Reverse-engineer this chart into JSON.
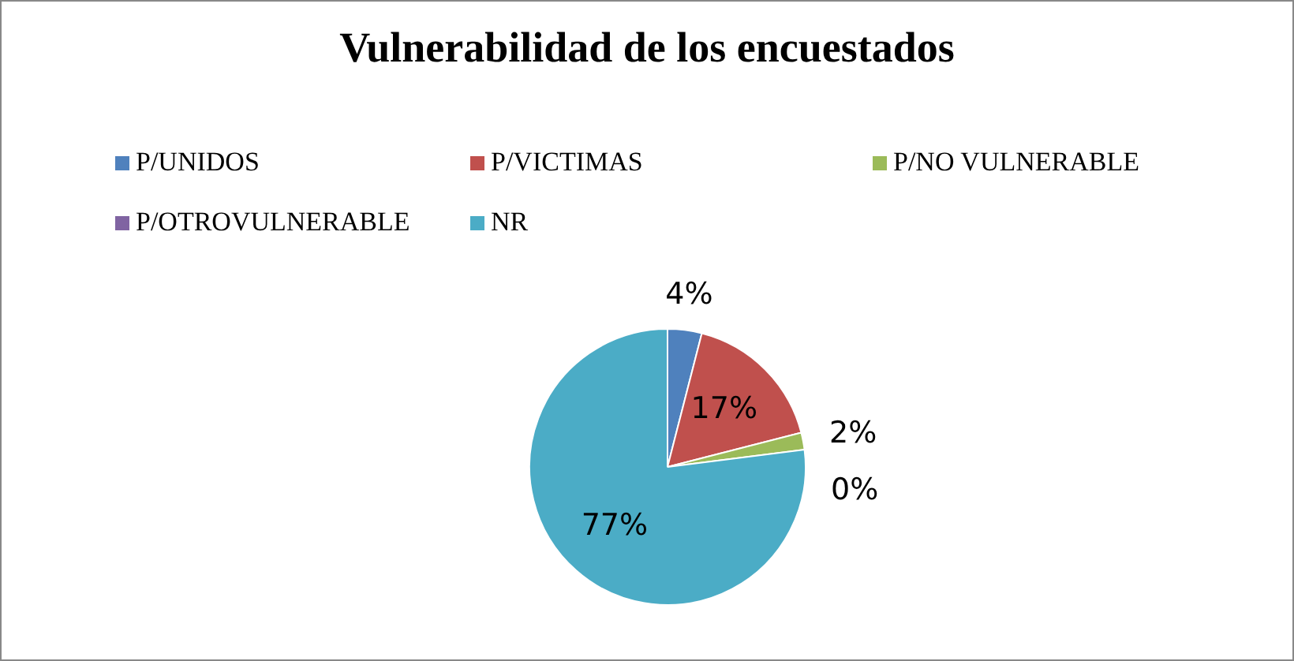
{
  "chart_data": {
    "type": "pie",
    "title": "Vulnerabilidad de los encuestados",
    "categories": [
      "P/UNIDOS",
      "P/VICTIMAS",
      "P/NO VULNERABLE",
      "P/OTROVULNERABLE",
      "NR"
    ],
    "values": [
      4,
      17,
      2,
      0,
      77
    ],
    "colors": [
      "#4f81bd",
      "#c0504d",
      "#9bbb59",
      "#8064a2",
      "#4bacc6"
    ],
    "value_labels": [
      "4%",
      "17%",
      "2%",
      "0%",
      "77%"
    ],
    "legend": "top"
  }
}
